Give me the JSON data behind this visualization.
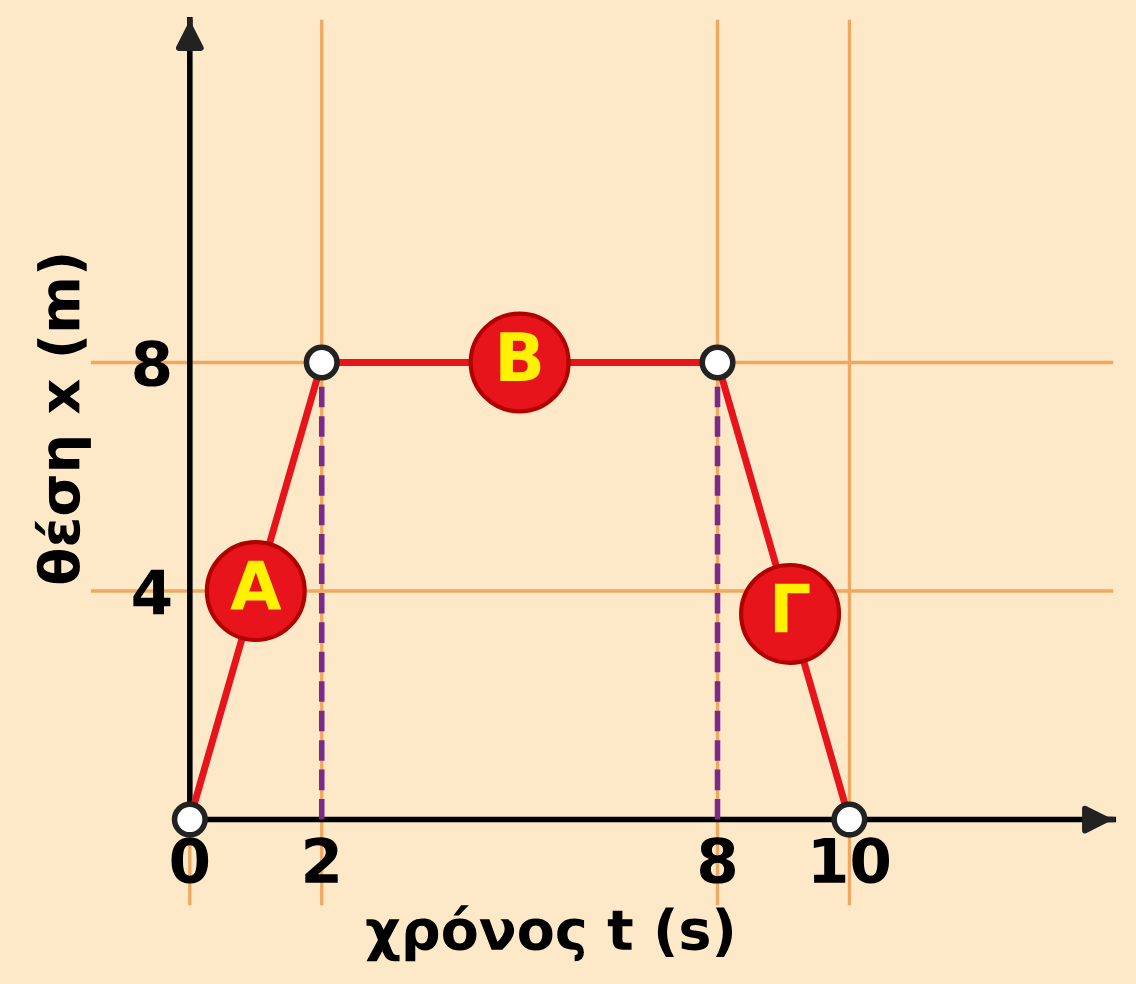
{
  "chart_data": {
    "type": "line",
    "xlabel": "χρόνος t (s)",
    "ylabel": "θέση x (m)",
    "x": [
      0,
      2,
      8,
      10
    ],
    "series": [
      {
        "color": "#e8141b",
        "values": [
          0,
          8,
          8,
          0
        ]
      }
    ],
    "marker": "circle",
    "line_style": "solid",
    "grid": true,
    "xlim": [
      -1.5,
      14
    ],
    "ylim": [
      -1.5,
      14
    ],
    "xticks": [
      0,
      2,
      8,
      10
    ],
    "yticks": [
      4,
      8
    ],
    "ref_lines": [
      {
        "axis": "x",
        "value": 2,
        "color": "#7b2a8c",
        "line_style": "dashed"
      },
      {
        "axis": "x",
        "value": 8,
        "color": "#7b2a8c",
        "line_style": "dashed"
      }
    ],
    "annotations": [
      {
        "text": "Α",
        "x": 1,
        "y": 4
      },
      {
        "text": "Β",
        "x": 5,
        "y": 8
      },
      {
        "text": "Γ",
        "x": 9.1,
        "y": 3.6
      }
    ]
  }
}
